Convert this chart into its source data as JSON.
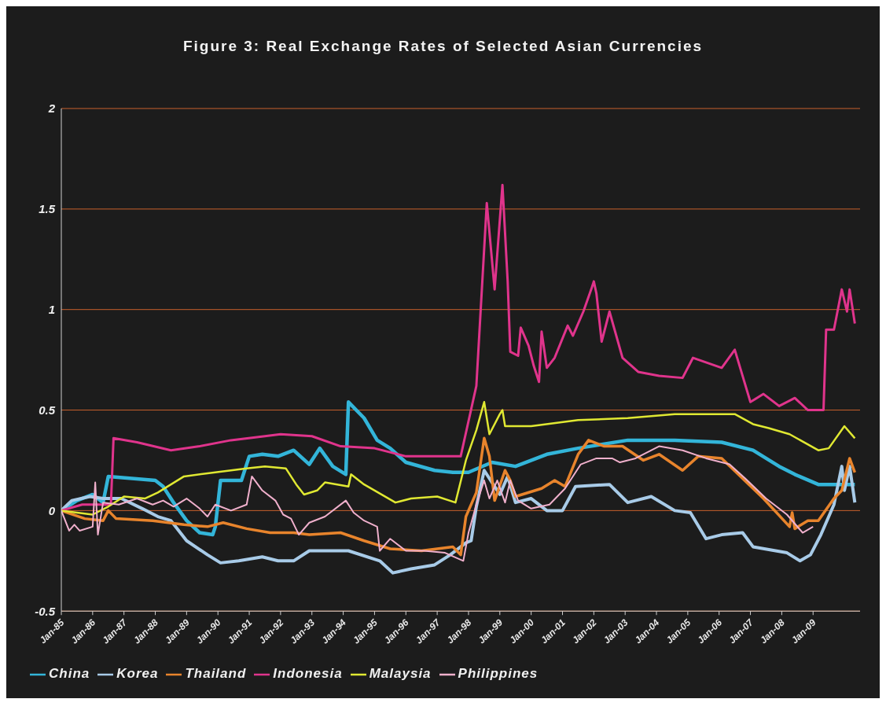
{
  "chart_data": {
    "type": "line",
    "title": "Figure 3: Real Exchange Rates of Selected Asian Currencies",
    "xlim": [
      "1985-01",
      "2010-07"
    ],
    "xticks": [
      {
        "value": "1985-01",
        "label": "Jan-85"
      },
      {
        "value": "1986-01",
        "label": "Jan-86"
      },
      {
        "value": "1987-01",
        "label": "Jan-87"
      },
      {
        "value": "1988-01",
        "label": "Jan-88"
      },
      {
        "value": "1989-01",
        "label": "Jan-89"
      },
      {
        "value": "1990-01",
        "label": "Jan-90"
      },
      {
        "value": "1991-01",
        "label": "Jan-91"
      },
      {
        "value": "1992-01",
        "label": "Jan-92"
      },
      {
        "value": "1993-01",
        "label": "Jan-93"
      },
      {
        "value": "1994-01",
        "label": "Jan-94"
      },
      {
        "value": "1995-01",
        "label": "Jan-95"
      },
      {
        "value": "1996-01",
        "label": "Jan-96"
      },
      {
        "value": "1997-01",
        "label": "Jan-97"
      },
      {
        "value": "1998-01",
        "label": "Jan-98"
      },
      {
        "value": "1999-01",
        "label": "Jan-99"
      },
      {
        "value": "2000-01",
        "label": "Jan-00"
      },
      {
        "value": "2001-01",
        "label": "Jan-01"
      },
      {
        "value": "2002-01",
        "label": "Jan-02"
      },
      {
        "value": "2003-01",
        "label": "Jan-03"
      },
      {
        "value": "2004-01",
        "label": "Jan-04"
      },
      {
        "value": "2005-01",
        "label": "Jan-05"
      },
      {
        "value": "2006-01",
        "label": "Jan-06"
      },
      {
        "value": "2007-01",
        "label": "Jan-07"
      },
      {
        "value": "2008-01",
        "label": "Jan-08"
      },
      {
        "value": "2009-01",
        "label": "Jan-09"
      }
    ],
    "ylim": [
      -0.5,
      2
    ],
    "yticks": [
      -0.5,
      0,
      0.5,
      1,
      1.5,
      2
    ],
    "grid": "y",
    "legend": "bottom",
    "marker": "none",
    "line_style": "solid",
    "series": [
      {
        "name": "China",
        "color": "#33b5d9",
        "x": [
          "1985-01",
          "1985-07",
          "1986-01",
          "1986-05",
          "1986-07",
          "1988-01",
          "1988-04",
          "1988-08",
          "1989-01",
          "1989-06",
          "1989-11",
          "1989-12",
          "1990-02",
          "1990-10",
          "1991-01",
          "1991-06",
          "1991-12",
          "1992-06",
          "1992-12",
          "1993-04",
          "1993-09",
          "1994-02",
          "1994-03",
          "1994-09",
          "1995-02",
          "1995-07",
          "1996-01",
          "1996-12",
          "1997-07",
          "1998-01",
          "1998-10",
          "1999-07",
          "2000-07",
          "2001-07",
          "2003-02",
          "2004-08",
          "2006-02",
          "2007-02",
          "2007-12",
          "2008-06",
          "2009-03",
          "2009-08",
          "2010-05"
        ],
        "values": [
          0.0,
          0.05,
          0.08,
          0.04,
          0.17,
          0.15,
          0.12,
          0.04,
          -0.05,
          -0.11,
          -0.12,
          -0.08,
          0.15,
          0.15,
          0.27,
          0.28,
          0.27,
          0.3,
          0.23,
          0.31,
          0.22,
          0.18,
          0.54,
          0.46,
          0.35,
          0.31,
          0.24,
          0.2,
          0.19,
          0.19,
          0.24,
          0.22,
          0.28,
          0.31,
          0.35,
          0.35,
          0.34,
          0.3,
          0.22,
          0.18,
          0.13,
          0.13,
          0.13
        ]
      },
      {
        "name": "Korea",
        "color": "#a8cbe8",
        "x": [
          "1985-01",
          "1985-05",
          "1985-12",
          "1986-05",
          "1986-12",
          "1987-08",
          "1988-02",
          "1988-07",
          "1989-01",
          "1989-09",
          "1990-02",
          "1990-09",
          "1991-06",
          "1991-12",
          "1992-06",
          "1992-12",
          "1994-03",
          "1995-03",
          "1995-08",
          "1996-03",
          "1996-12",
          "1997-06",
          "1997-12",
          "1998-02",
          "1998-04",
          "1998-07",
          "1998-10",
          "1999-01",
          "1999-04",
          "1999-07",
          "2000-01",
          "2000-07",
          "2001-01",
          "2001-06",
          "2002-07",
          "2003-02",
          "2003-11",
          "2004-08",
          "2005-02",
          "2005-08",
          "2006-02",
          "2006-10",
          "2007-02",
          "2008-03",
          "2008-08",
          "2008-12",
          "2009-04",
          "2009-09",
          "2009-12",
          "2010-01",
          "2010-03",
          "2010-05"
        ],
        "values": [
          0.0,
          0.05,
          0.07,
          0.06,
          0.06,
          0.01,
          -0.03,
          -0.05,
          -0.15,
          -0.22,
          -0.26,
          -0.25,
          -0.23,
          -0.25,
          -0.25,
          -0.2,
          -0.2,
          -0.25,
          -0.31,
          -0.29,
          -0.27,
          -0.22,
          -0.16,
          -0.15,
          0.02,
          0.2,
          0.14,
          0.08,
          0.17,
          0.04,
          0.06,
          0.0,
          0.0,
          0.12,
          0.13,
          0.04,
          0.07,
          0.0,
          -0.01,
          -0.14,
          -0.12,
          -0.11,
          -0.18,
          -0.21,
          -0.25,
          -0.22,
          -0.12,
          0.03,
          0.22,
          0.1,
          0.22,
          0.04
        ]
      },
      {
        "name": "Thailand",
        "color": "#e8842c",
        "x": [
          "1985-01",
          "1985-10",
          "1986-05",
          "1986-07",
          "1986-10",
          "1987-12",
          "1988-12",
          "1989-09",
          "1990-03",
          "1990-12",
          "1991-09",
          "1992-06",
          "1992-12",
          "1993-12",
          "1994-09",
          "1995-07",
          "1996-07",
          "1997-07",
          "1997-10",
          "1997-12",
          "1998-04",
          "1998-07",
          "1998-09",
          "1998-11",
          "1999-03",
          "1999-05",
          "1999-07",
          "2000-05",
          "2000-10",
          "2001-02",
          "2001-07",
          "2001-11",
          "2002-05",
          "2002-12",
          "2003-08",
          "2004-02",
          "2004-11",
          "2005-05",
          "2006-02",
          "2006-10",
          "2007-06",
          "2008-04",
          "2008-05",
          "2008-06",
          "2008-11",
          "2009-03",
          "2009-09",
          "2009-12",
          "2010-03",
          "2010-05"
        ],
        "values": [
          0.0,
          -0.04,
          -0.05,
          0.0,
          -0.04,
          -0.05,
          -0.07,
          -0.08,
          -0.06,
          -0.09,
          -0.11,
          -0.11,
          -0.12,
          -0.11,
          -0.15,
          -0.19,
          -0.2,
          -0.18,
          -0.22,
          -0.03,
          0.09,
          0.36,
          0.27,
          0.05,
          0.2,
          0.15,
          0.07,
          0.11,
          0.15,
          0.12,
          0.28,
          0.35,
          0.32,
          0.32,
          0.25,
          0.28,
          0.2,
          0.27,
          0.26,
          0.16,
          0.06,
          -0.08,
          -0.01,
          -0.09,
          -0.05,
          -0.05,
          0.06,
          0.1,
          0.26,
          0.19
        ]
      },
      {
        "name": "Indonesia",
        "color": "#e0348c",
        "x": [
          "1985-01",
          "1985-09",
          "1986-08",
          "1986-09",
          "1987-06",
          "1988-07",
          "1989-06",
          "1990-06",
          "1991-07",
          "1992-01",
          "1993-01",
          "1993-12",
          "1995-01",
          "1996-01",
          "1997-01",
          "1997-10",
          "1998-04",
          "1998-08",
          "1998-11",
          "1999-02",
          "1999-04",
          "1999-05",
          "1999-08",
          "1999-09",
          "1999-12",
          "2000-02",
          "2000-04",
          "2000-05",
          "2000-07",
          "2000-10",
          "2001-03",
          "2001-05",
          "2001-09",
          "2001-12",
          "2002-01",
          "2002-02",
          "2002-04",
          "2002-07",
          "2002-12",
          "2003-06",
          "2004-02",
          "2004-11",
          "2005-03",
          "2006-02",
          "2006-07",
          "2007-01",
          "2007-06",
          "2007-12",
          "2008-06",
          "2008-11",
          "2009-05",
          "2009-06",
          "2009-09",
          "2009-12",
          "2010-02",
          "2010-03",
          "2010-05"
        ],
        "values": [
          0.0,
          0.03,
          0.03,
          0.36,
          0.34,
          0.3,
          0.32,
          0.35,
          0.37,
          0.38,
          0.37,
          0.32,
          0.31,
          0.27,
          0.27,
          0.27,
          0.62,
          1.53,
          1.1,
          1.62,
          1.14,
          0.79,
          0.77,
          0.91,
          0.82,
          0.72,
          0.64,
          0.89,
          0.71,
          0.76,
          0.92,
          0.87,
          0.99,
          1.1,
          1.14,
          1.08,
          0.84,
          0.99,
          0.76,
          0.69,
          0.67,
          0.66,
          0.76,
          0.71,
          0.8,
          0.54,
          0.58,
          0.52,
          0.56,
          0.5,
          0.5,
          0.9,
          0.9,
          1.1,
          0.99,
          1.1,
          0.93
        ]
      },
      {
        "name": "Malaysia",
        "color": "#e0e832",
        "x": [
          "1985-01",
          "1986-01",
          "1986-07",
          "1987-01",
          "1987-09",
          "1988-02",
          "1988-12",
          "1989-12",
          "1990-12",
          "1991-07",
          "1992-03",
          "1992-07",
          "1992-10",
          "1993-03",
          "1993-06",
          "1994-03",
          "1994-04",
          "1994-09",
          "1995-09",
          "1996-03",
          "1997-01",
          "1997-08",
          "1997-12",
          "1998-04",
          "1998-07",
          "1998-09",
          "1999-01",
          "1999-02",
          "1999-03",
          "2000-01",
          "2001-07",
          "2003-02",
          "2004-08",
          "2006-07",
          "2007-02",
          "2007-08",
          "2008-04",
          "2009-03",
          "2009-07",
          "2010-01",
          "2010-05"
        ],
        "values": [
          0.0,
          -0.02,
          0.02,
          0.07,
          0.06,
          0.09,
          0.17,
          0.19,
          0.21,
          0.22,
          0.21,
          0.13,
          0.08,
          0.1,
          0.14,
          0.12,
          0.18,
          0.13,
          0.04,
          0.06,
          0.07,
          0.04,
          0.25,
          0.4,
          0.54,
          0.38,
          0.48,
          0.5,
          0.42,
          0.42,
          0.45,
          0.46,
          0.48,
          0.48,
          0.43,
          0.41,
          0.38,
          0.3,
          0.31,
          0.42,
          0.36
        ]
      },
      {
        "name": "Philippines",
        "color": "#f0b0cc",
        "x": [
          "1985-01",
          "1985-04",
          "1985-06",
          "1985-08",
          "1986-01",
          "1986-02",
          "1986-03",
          "1986-05",
          "1986-11",
          "1987-06",
          "1987-12",
          "1988-04",
          "1988-08",
          "1989-01",
          "1989-06",
          "1989-09",
          "1989-12",
          "1990-06",
          "1990-12",
          "1991-02",
          "1991-06",
          "1991-11",
          "1992-02",
          "1992-05",
          "1992-08",
          "1992-12",
          "1993-06",
          "1994-02",
          "1994-05",
          "1994-09",
          "1995-02",
          "1995-03",
          "1995-07",
          "1996-01",
          "1996-08",
          "1997-04",
          "1997-11",
          "1998-01",
          "1998-04",
          "1998-07",
          "1998-09",
          "1998-12",
          "1999-03",
          "1999-05",
          "1999-08",
          "2000-01",
          "2000-08",
          "2001-02",
          "2001-08",
          "2002-02",
          "2002-08",
          "2002-11",
          "2003-05",
          "2004-02",
          "2004-11",
          "2005-08",
          "2006-05",
          "2006-11",
          "2007-07",
          "2008-03",
          "2008-09",
          "2009-01"
        ],
        "values": [
          0.0,
          -0.1,
          -0.07,
          -0.1,
          -0.08,
          0.14,
          -0.12,
          0.04,
          0.03,
          0.06,
          0.03,
          0.05,
          0.02,
          0.06,
          0.01,
          -0.03,
          0.03,
          0.0,
          0.03,
          0.17,
          0.1,
          0.05,
          -0.02,
          -0.04,
          -0.12,
          -0.06,
          -0.03,
          0.05,
          -0.01,
          -0.05,
          -0.08,
          -0.2,
          -0.14,
          -0.2,
          -0.2,
          -0.21,
          -0.25,
          -0.11,
          0.03,
          0.15,
          0.06,
          0.15,
          0.04,
          0.15,
          0.05,
          0.01,
          0.03,
          0.11,
          0.23,
          0.26,
          0.26,
          0.24,
          0.26,
          0.32,
          0.3,
          0.26,
          0.23,
          0.16,
          0.06,
          -0.02,
          -0.11,
          -0.08
        ]
      }
    ]
  }
}
